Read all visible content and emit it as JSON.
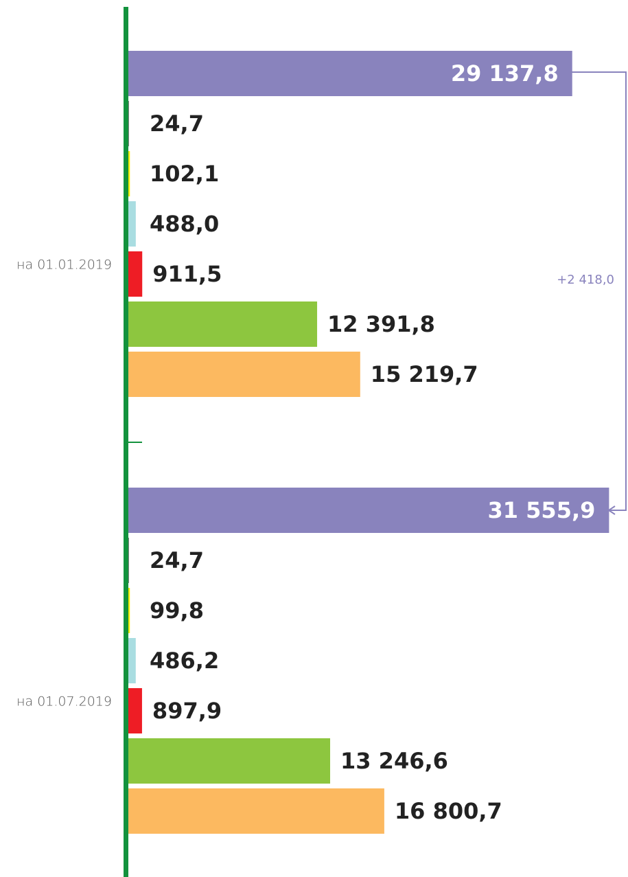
{
  "chart_data": {
    "type": "bar",
    "orientation": "horizontal",
    "categories": [
      "на 01.01.2019",
      "на 01.07.2019"
    ],
    "xlim": [
      0,
      32800
    ],
    "series": [
      {
        "color": "#8983bd",
        "values": [
          29137.8,
          31555.9
        ],
        "value_labels": [
          "29 137,8",
          "31 555,9"
        ]
      },
      {
        "color": "#1a1a1a",
        "values": [
          24.7,
          24.7
        ],
        "value_labels": [
          "24,7",
          "24,7"
        ]
      },
      {
        "color": "#f2ef00",
        "values": [
          102.1,
          99.8
        ],
        "value_labels": [
          "102,1",
          "99,8"
        ]
      },
      {
        "color": "#a9dde1",
        "values": [
          488.0,
          486.2
        ],
        "value_labels": [
          "488,0",
          "486,2"
        ]
      },
      {
        "color": "#ee1d25",
        "values": [
          911.5,
          897.9
        ],
        "value_labels": [
          "911,5",
          "897,9"
        ]
      },
      {
        "color": "#8dc63f",
        "values": [
          12391.8,
          13246.6
        ],
        "value_labels": [
          "12 391,8",
          "13 246,6"
        ]
      },
      {
        "color": "#fcb960",
        "values": [
          15219.7,
          16800.7
        ],
        "value_labels": [
          "15 219,7",
          "16 800,7"
        ]
      }
    ],
    "annotation": "+2 418,0"
  }
}
